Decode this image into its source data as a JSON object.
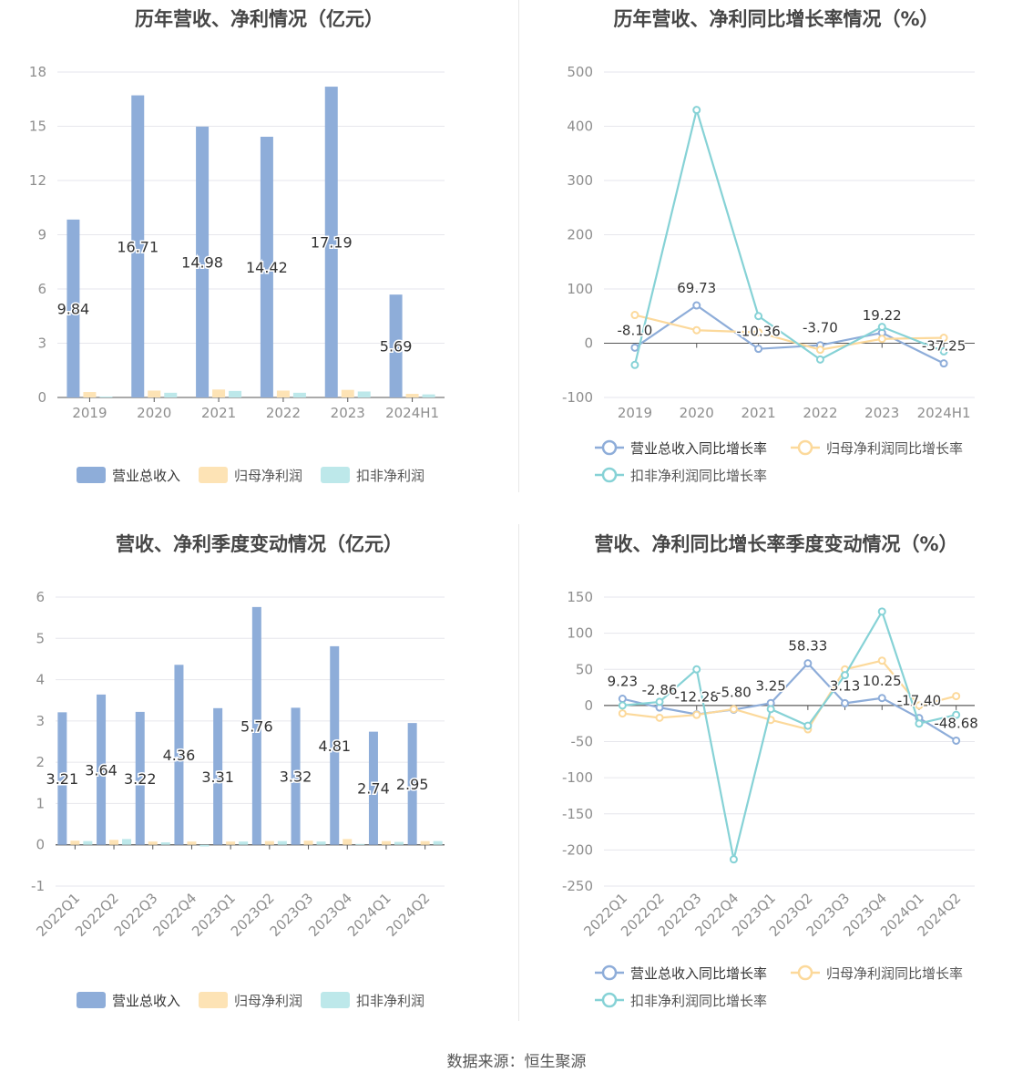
{
  "source": "数据来源：恒生聚源",
  "colors": {
    "revenue": "#8eadd9",
    "net_profit": "#fde3b5",
    "deducted_profit": "#bde8ea",
    "revenue_line": "#8eadd9",
    "net_line": "#fcd99b",
    "deducted_line": "#86d2d6",
    "grid": "#e6e6ec",
    "axis_text": "#8e8e8e",
    "label_text": "#333333"
  },
  "chart_data": [
    {
      "id": "annual-amount",
      "type": "bar",
      "title": "历年营收、净利情况（亿元）",
      "categories": [
        "2019",
        "2020",
        "2021",
        "2022",
        "2023",
        "2024H1"
      ],
      "ylim": [
        0,
        18
      ],
      "yticks": [
        0,
        3,
        6,
        9,
        12,
        15,
        18
      ],
      "series": [
        {
          "name": "营业总收入",
          "values": [
            9.84,
            16.71,
            14.98,
            14.42,
            17.19,
            5.69
          ],
          "labels": [
            "9.84",
            "16.71",
            "14.98",
            "14.42",
            "17.19",
            "5.69"
          ]
        },
        {
          "name": "归母净利润",
          "values": [
            0.3,
            0.38,
            0.44,
            0.38,
            0.42,
            0.2
          ]
        },
        {
          "name": "扣非净利润",
          "values": [
            0.05,
            0.26,
            0.36,
            0.26,
            0.33,
            0.17
          ]
        }
      ],
      "legend": "bottom",
      "grid": true
    },
    {
      "id": "annual-growth",
      "type": "line",
      "title": "历年营收、净利同比增长率情况（%）",
      "categories": [
        "2019",
        "2020",
        "2021",
        "2022",
        "2023",
        "2024H1"
      ],
      "ylim": [
        -100,
        500
      ],
      "yticks": [
        -100,
        0,
        100,
        200,
        300,
        400,
        500
      ],
      "series": [
        {
          "name": "营业总收入同比增长率",
          "values": [
            -8.1,
            69.73,
            -10.36,
            -3.7,
            19.22,
            -37.25
          ],
          "labels": [
            "-8.10",
            "69.73",
            "-10.36",
            "-3.70",
            "19.22",
            "-37.25"
          ]
        },
        {
          "name": "归母净利润同比增长率",
          "values": [
            52,
            24,
            20,
            -12,
            8,
            10
          ]
        },
        {
          "name": "扣非净利润同比增长率",
          "values": [
            -40,
            430,
            50,
            -30,
            30,
            -15
          ]
        }
      ],
      "legend": "bottom",
      "grid": true
    },
    {
      "id": "quarterly-amount",
      "type": "bar",
      "title": "营收、净利季度变动情况（亿元）",
      "categories": [
        "2022Q1",
        "2022Q2",
        "2022Q3",
        "2022Q4",
        "2023Q1",
        "2023Q2",
        "2023Q3",
        "2023Q4",
        "2024Q1",
        "2024Q2"
      ],
      "ylim": [
        -1,
        6
      ],
      "yticks": [
        -1,
        0,
        1,
        2,
        3,
        4,
        5,
        6
      ],
      "series": [
        {
          "name": "营业总收入",
          "values": [
            3.21,
            3.64,
            3.22,
            4.36,
            3.31,
            5.76,
            3.32,
            4.81,
            2.74,
            2.95
          ],
          "labels": [
            "3.21",
            "3.64",
            "3.22",
            "4.36",
            "3.31",
            "5.76",
            "3.32",
            "4.81",
            "2.74",
            "2.95"
          ]
        },
        {
          "name": "归母净利润",
          "values": [
            0.1,
            0.12,
            0.08,
            0.08,
            0.08,
            0.09,
            0.1,
            0.14,
            0.09,
            0.09
          ]
        },
        {
          "name": "扣非净利润",
          "values": [
            0.09,
            0.14,
            0.06,
            -0.04,
            0.08,
            0.09,
            0.08,
            0.02,
            0.07,
            0.09
          ]
        }
      ],
      "legend": "bottom",
      "grid": true
    },
    {
      "id": "quarterly-growth",
      "type": "line",
      "title": "营收、净利同比增长率季度变动情况（%）",
      "categories": [
        "2022Q1",
        "2022Q2",
        "2022Q3",
        "2022Q4",
        "2023Q1",
        "2023Q2",
        "2023Q3",
        "2023Q4",
        "2024Q1",
        "2024Q2"
      ],
      "ylim": [
        -250,
        150
      ],
      "yticks": [
        -250,
        -200,
        -150,
        -100,
        -50,
        0,
        50,
        100,
        150
      ],
      "series": [
        {
          "name": "营业总收入同比增长率",
          "values": [
            9.23,
            -2.86,
            -12.28,
            -5.8,
            3.25,
            58.33,
            3.13,
            10.25,
            -17.4,
            -48.68
          ],
          "labels": [
            "9.23",
            "-2.86",
            "-12.28",
            "-5.80",
            "3.25",
            "58.33",
            "3.13",
            "10.25",
            "-17.40",
            "-48.68"
          ]
        },
        {
          "name": "归母净利润同比增长率",
          "values": [
            -11,
            -17,
            -13,
            -5,
            -20,
            -33,
            50,
            62,
            0,
            13
          ]
        },
        {
          "name": "扣非净利润同比增长率",
          "values": [
            0,
            5,
            50,
            -213,
            -5,
            -28,
            42,
            130,
            -25,
            -13
          ]
        }
      ],
      "legend": "bottom",
      "grid": true
    }
  ]
}
